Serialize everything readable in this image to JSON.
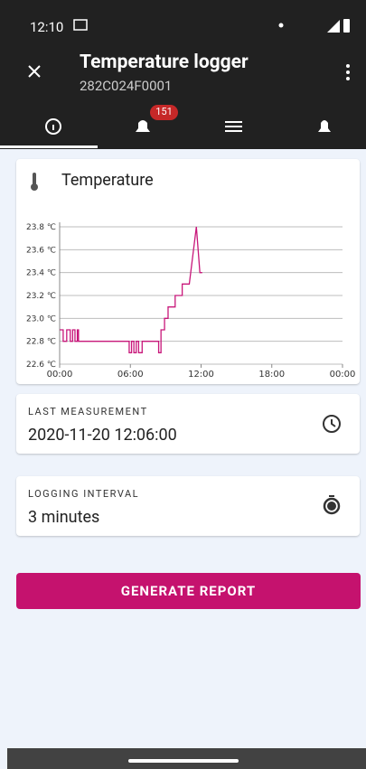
{
  "status_bar": {
    "time": "12:10"
  },
  "app_bar": {
    "title": "Temperature logger",
    "subtitle": "282C024F0001"
  },
  "tabs": {
    "badge": 151
  },
  "card": {
    "title": "Temperature"
  },
  "chart_data": {
    "type": "line",
    "x": [
      0,
      0.3,
      0.3,
      0.6,
      0.6,
      0.9,
      0.9,
      1.1,
      1.1,
      1.3,
      1.3,
      1.5,
      1.5,
      1.6,
      1.6,
      5.9,
      5.9,
      6.1,
      6.1,
      6.3,
      6.3,
      6.5,
      6.5,
      6.7,
      6.7,
      7.0,
      7.0,
      8.4,
      8.4,
      8.6,
      8.6,
      8.9,
      8.9,
      9.2,
      9.2,
      9.8,
      9.8,
      10.4,
      10.4,
      11.0,
      11.6,
      11.9,
      12.1
    ],
    "series": [
      {
        "name": "Temperature",
        "color": "#c8177a",
        "values": [
          22.9,
          22.9,
          22.8,
          22.8,
          22.9,
          22.9,
          22.8,
          22.8,
          22.9,
          22.9,
          22.8,
          22.8,
          22.9,
          22.9,
          22.8,
          22.8,
          22.7,
          22.7,
          22.8,
          22.8,
          22.7,
          22.7,
          22.8,
          22.8,
          22.7,
          22.7,
          22.8,
          22.8,
          22.7,
          22.7,
          22.9,
          22.9,
          23.0,
          23.0,
          23.1,
          23.1,
          23.2,
          23.2,
          23.3,
          23.3,
          23.8,
          23.4,
          23.4
        ]
      }
    ],
    "xlim": [
      0,
      24
    ],
    "xticks": [
      {
        "value": 0,
        "label": "00:00"
      },
      {
        "value": 6,
        "label": "06:00"
      },
      {
        "value": 12,
        "label": "12:00"
      },
      {
        "value": 18,
        "label": "18:00"
      },
      {
        "value": 24,
        "label": "00:00"
      }
    ],
    "ylim": [
      22.6,
      23.8
    ],
    "yticks": [
      {
        "value": 22.6,
        "label": "22.6 ℃"
      },
      {
        "value": 22.8,
        "label": "22.8 ℃"
      },
      {
        "value": 23.0,
        "label": "23.0 ℃"
      },
      {
        "value": 23.2,
        "label": "23.2 ℃"
      },
      {
        "value": 23.4,
        "label": "23.4 ℃"
      },
      {
        "value": 23.6,
        "label": "23.6 ℃"
      },
      {
        "value": 23.8,
        "label": "23.8 ℃"
      }
    ],
    "grid": true
  },
  "last_measurement": {
    "label": "LAST MEASUREMENT",
    "value": "2020-11-20 12:06:00"
  },
  "logging_interval": {
    "label": "LOGGING INTERVAL",
    "value": "3 minutes"
  },
  "button": "GENERATE REPORT"
}
